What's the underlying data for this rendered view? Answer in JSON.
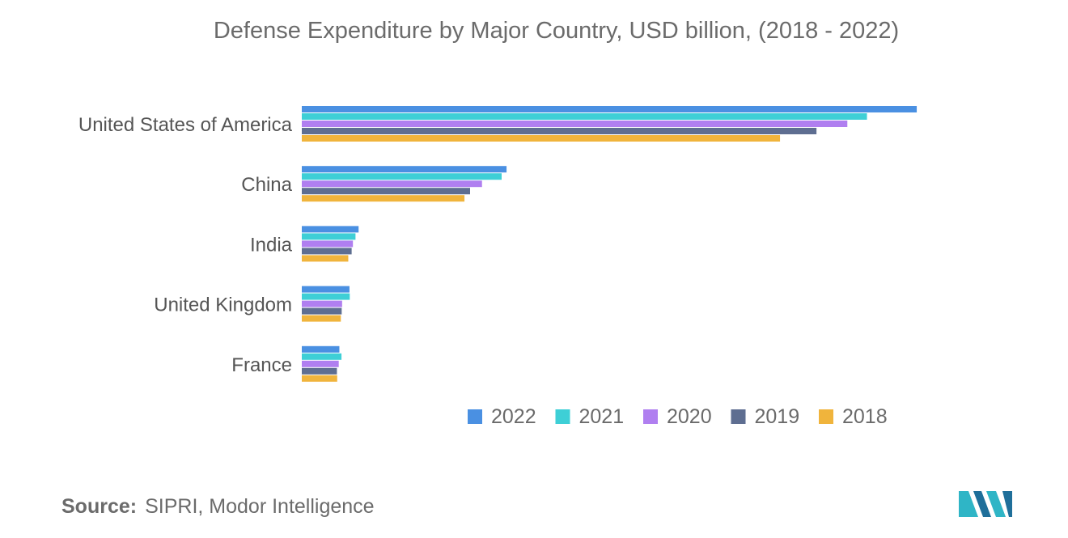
{
  "chart_data": {
    "type": "bar",
    "orientation": "horizontal",
    "title": "Defense Expenditure by Major Country, USD billion, (2018 - 2022)",
    "categories": [
      "United States of America",
      "China",
      "India",
      "United Kingdom",
      "France"
    ],
    "series": [
      {
        "name": "2022",
        "color": "#4a90e2",
        "values": [
          877,
          292,
          81,
          68,
          53.6
        ]
      },
      {
        "name": "2021",
        "color": "#3ecfd6",
        "values": [
          806,
          285,
          76.6,
          68.4,
          56.6
        ]
      },
      {
        "name": "2020",
        "color": "#b07ff0",
        "values": [
          778,
          257,
          72.9,
          57.5,
          52.7
        ]
      },
      {
        "name": "2019",
        "color": "#5e6e91",
        "values": [
          734,
          240,
          71.1,
          56.9,
          50.1
        ]
      },
      {
        "name": "2018",
        "color": "#f0b43c",
        "values": [
          682,
          232,
          66.3,
          55.7,
          50.5
        ]
      }
    ],
    "xlim": [
      0,
      900
    ],
    "grid": false,
    "legend_position": "bottom-right"
  },
  "source": {
    "label": "Source:",
    "text": "SIPRI, Modor Intelligence"
  }
}
